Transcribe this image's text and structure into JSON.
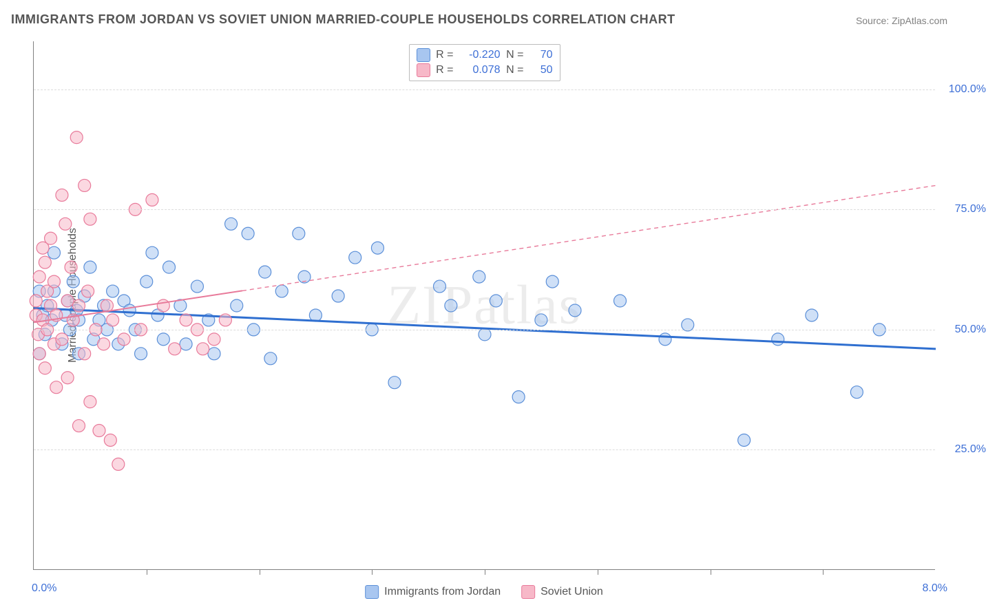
{
  "title": "IMMIGRANTS FROM JORDAN VS SOVIET UNION MARRIED-COUPLE HOUSEHOLDS CORRELATION CHART",
  "source": "Source: ZipAtlas.com",
  "watermark": "ZIPatlas",
  "ylabel": "Married-couple Households",
  "chart": {
    "type": "scatter",
    "xlim": [
      0,
      8
    ],
    "ylim": [
      0,
      110
    ],
    "x_ticks_minor": [
      1,
      2,
      3,
      4,
      5,
      6,
      7
    ],
    "x_axis_labels": {
      "min": "0.0%",
      "max": "8.0%"
    },
    "y_gridlines": [
      25,
      50,
      75,
      100
    ],
    "y_tick_labels": {
      "25": "25.0%",
      "50": "50.0%",
      "75": "75.0%",
      "100": "100.0%"
    },
    "grid_color": "#dcdcdc",
    "axis_label_color": "#3d6fd6",
    "background_color": "#ffffff",
    "marker_radius": 9,
    "marker_opacity": 0.55,
    "series": [
      {
        "name": "Immigrants from Jordan",
        "fill_color": "#a8c6f0",
        "stroke_color": "#5b8fd8",
        "R": "-0.220",
        "N": "70",
        "trend": {
          "y_at_xmin": 54.5,
          "y_at_xmax": 46.0,
          "style": "solid",
          "width": 3,
          "color": "#2f6fd0",
          "dashed_from_x": null
        },
        "points": [
          [
            0.05,
            45
          ],
          [
            0.08,
            53
          ],
          [
            0.1,
            49
          ],
          [
            0.12,
            55
          ],
          [
            0.16,
            52
          ],
          [
            0.05,
            58
          ],
          [
            0.18,
            58
          ],
          [
            0.18,
            66
          ],
          [
            0.25,
            47
          ],
          [
            0.28,
            53
          ],
          [
            0.3,
            56
          ],
          [
            0.32,
            50
          ],
          [
            0.35,
            60
          ],
          [
            0.38,
            54
          ],
          [
            0.4,
            45
          ],
          [
            0.4,
            52
          ],
          [
            0.45,
            57
          ],
          [
            0.5,
            63
          ],
          [
            0.53,
            48
          ],
          [
            0.58,
            52
          ],
          [
            0.62,
            55
          ],
          [
            0.65,
            50
          ],
          [
            0.7,
            58
          ],
          [
            0.75,
            47
          ],
          [
            0.8,
            56
          ],
          [
            0.85,
            54
          ],
          [
            0.9,
            50
          ],
          [
            0.95,
            45
          ],
          [
            1.0,
            60
          ],
          [
            1.05,
            66
          ],
          [
            1.1,
            53
          ],
          [
            1.15,
            48
          ],
          [
            1.2,
            63
          ],
          [
            1.3,
            55
          ],
          [
            1.35,
            47
          ],
          [
            1.45,
            59
          ],
          [
            1.55,
            52
          ],
          [
            1.6,
            45
          ],
          [
            1.75,
            72
          ],
          [
            1.8,
            55
          ],
          [
            1.9,
            70
          ],
          [
            1.95,
            50
          ],
          [
            2.05,
            62
          ],
          [
            2.1,
            44
          ],
          [
            2.2,
            58
          ],
          [
            2.35,
            70
          ],
          [
            2.4,
            61
          ],
          [
            2.5,
            53
          ],
          [
            2.7,
            57
          ],
          [
            2.85,
            65
          ],
          [
            3.0,
            50
          ],
          [
            3.05,
            67
          ],
          [
            3.2,
            39
          ],
          [
            3.6,
            59
          ],
          [
            3.7,
            55
          ],
          [
            3.95,
            61
          ],
          [
            4.0,
            49
          ],
          [
            4.1,
            56
          ],
          [
            4.3,
            36
          ],
          [
            4.5,
            52
          ],
          [
            4.6,
            60
          ],
          [
            4.8,
            54
          ],
          [
            5.2,
            56
          ],
          [
            5.6,
            48
          ],
          [
            5.8,
            51
          ],
          [
            6.3,
            27
          ],
          [
            6.6,
            48
          ],
          [
            6.9,
            53
          ],
          [
            7.3,
            37
          ],
          [
            7.5,
            50
          ]
        ]
      },
      {
        "name": "Soviet Union",
        "fill_color": "#f7b8c8",
        "stroke_color": "#e87a9a",
        "R": "0.078",
        "N": "50",
        "trend": {
          "y_at_xmin": 51.5,
          "y_at_xmax": 80.0,
          "style": "dashed-after",
          "width": 2,
          "color": "#e87a9a",
          "dashed_from_x": 1.85
        },
        "points": [
          [
            0.02,
            53
          ],
          [
            0.04,
            49
          ],
          [
            0.02,
            56
          ],
          [
            0.05,
            61
          ],
          [
            0.05,
            45
          ],
          [
            0.08,
            67
          ],
          [
            0.08,
            52
          ],
          [
            0.1,
            64
          ],
          [
            0.1,
            42
          ],
          [
            0.12,
            58
          ],
          [
            0.12,
            50
          ],
          [
            0.15,
            55
          ],
          [
            0.15,
            69
          ],
          [
            0.18,
            47
          ],
          [
            0.18,
            60
          ],
          [
            0.2,
            38
          ],
          [
            0.2,
            53
          ],
          [
            0.25,
            78
          ],
          [
            0.25,
            48
          ],
          [
            0.28,
            72
          ],
          [
            0.3,
            56
          ],
          [
            0.3,
            40
          ],
          [
            0.33,
            63
          ],
          [
            0.35,
            52
          ],
          [
            0.38,
            90
          ],
          [
            0.4,
            30
          ],
          [
            0.4,
            55
          ],
          [
            0.45,
            80
          ],
          [
            0.45,
            45
          ],
          [
            0.48,
            58
          ],
          [
            0.5,
            73
          ],
          [
            0.5,
            35
          ],
          [
            0.55,
            50
          ],
          [
            0.58,
            29
          ],
          [
            0.62,
            47
          ],
          [
            0.65,
            55
          ],
          [
            0.68,
            27
          ],
          [
            0.7,
            52
          ],
          [
            0.75,
            22
          ],
          [
            0.8,
            48
          ],
          [
            0.9,
            75
          ],
          [
            0.95,
            50
          ],
          [
            1.05,
            77
          ],
          [
            1.15,
            55
          ],
          [
            1.25,
            46
          ],
          [
            1.35,
            52
          ],
          [
            1.45,
            50
          ],
          [
            1.5,
            46
          ],
          [
            1.6,
            48
          ],
          [
            1.7,
            52
          ]
        ]
      }
    ]
  },
  "legend": {
    "items": [
      {
        "label": "Immigrants from Jordan",
        "fill": "#a8c6f0",
        "stroke": "#5b8fd8"
      },
      {
        "label": "Soviet Union",
        "fill": "#f7b8c8",
        "stroke": "#e87a9a"
      }
    ]
  }
}
